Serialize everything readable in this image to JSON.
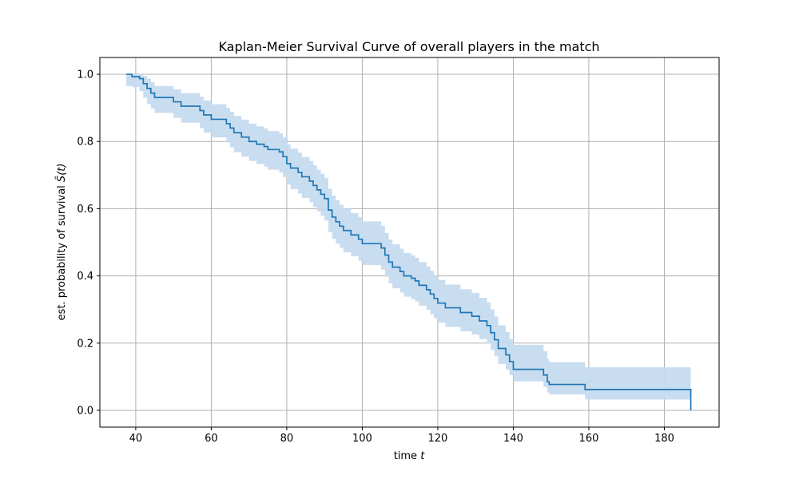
{
  "chart_data": {
    "type": "line",
    "title": "Kaplan-Meier Survival Curve of overall players in the match",
    "xlabel": "time",
    "xlabel_var": "t",
    "ylabel": "est. probability of survival",
    "ylabel_var": "Ŝ(t)",
    "xlim": [
      30.5,
      194.5
    ],
    "ylim": [
      -0.05,
      1.05
    ],
    "xticks": [
      40,
      60,
      80,
      100,
      120,
      140,
      160,
      180
    ],
    "yticks": [
      0.0,
      0.2,
      0.4,
      0.6,
      0.8,
      1.0
    ],
    "xtick_labels": [
      "40",
      "60",
      "80",
      "100",
      "120",
      "140",
      "160",
      "180"
    ],
    "ytick_labels": [
      "0.0",
      "0.2",
      "0.4",
      "0.6",
      "0.8",
      "1.0"
    ],
    "grid": true,
    "colors": {
      "line": "#1f77b4",
      "band": "#c6dbef",
      "grid": "#b0b0b0"
    },
    "series": [
      {
        "step": "post",
        "points": [
          [
            37.5,
            1.0
          ],
          [
            39,
            0.993
          ],
          [
            41,
            0.987
          ],
          [
            42,
            0.972
          ],
          [
            43,
            0.958
          ],
          [
            44,
            0.944
          ],
          [
            45,
            0.931
          ],
          [
            50,
            0.918
          ],
          [
            52,
            0.905
          ],
          [
            57,
            0.892
          ],
          [
            58,
            0.879
          ],
          [
            60,
            0.866
          ],
          [
            64,
            0.853
          ],
          [
            65,
            0.84
          ],
          [
            66,
            0.826
          ],
          [
            68,
            0.813
          ],
          [
            70,
            0.8
          ],
          [
            72,
            0.792
          ],
          [
            74,
            0.785
          ],
          [
            75,
            0.776
          ],
          [
            78,
            0.769
          ],
          [
            79,
            0.755
          ],
          [
            80,
            0.734
          ],
          [
            81,
            0.721
          ],
          [
            83,
            0.708
          ],
          [
            84,
            0.695
          ],
          [
            86,
            0.682
          ],
          [
            87,
            0.669
          ],
          [
            88,
            0.656
          ],
          [
            89,
            0.643
          ],
          [
            90,
            0.63
          ],
          [
            91,
            0.596
          ],
          [
            92,
            0.575
          ],
          [
            93,
            0.561
          ],
          [
            94,
            0.548
          ],
          [
            95,
            0.535
          ],
          [
            97,
            0.522
          ],
          [
            99,
            0.509
          ],
          [
            100,
            0.496
          ],
          [
            105,
            0.483
          ],
          [
            106,
            0.462
          ],
          [
            107,
            0.441
          ],
          [
            108,
            0.426
          ],
          [
            110,
            0.413
          ],
          [
            111,
            0.4
          ],
          [
            113,
            0.393
          ],
          [
            114,
            0.385
          ],
          [
            115,
            0.372
          ],
          [
            117,
            0.359
          ],
          [
            118,
            0.346
          ],
          [
            119,
            0.333
          ],
          [
            120,
            0.319
          ],
          [
            122,
            0.305
          ],
          [
            126,
            0.291
          ],
          [
            129,
            0.28
          ],
          [
            131,
            0.266
          ],
          [
            133,
            0.252
          ],
          [
            134,
            0.231
          ],
          [
            135,
            0.21
          ],
          [
            136,
            0.184
          ],
          [
            138,
            0.165
          ],
          [
            139,
            0.145
          ],
          [
            140,
            0.122
          ],
          [
            148,
            0.105
          ],
          [
            149,
            0.085
          ],
          [
            149.5,
            0.077
          ],
          [
            159,
            0.062
          ],
          [
            187,
            0.062
          ],
          [
            187,
            0.0
          ]
        ]
      }
    ],
    "confidence_band": {
      "step": "post",
      "points": [
        [
          37.5,
          0.965,
          1.0
        ],
        [
          39,
          0.962,
          1.0
        ],
        [
          41,
          0.95,
          1.0
        ],
        [
          42,
          0.93,
          0.995
        ],
        [
          43,
          0.912,
          0.987
        ],
        [
          44,
          0.898,
          0.977
        ],
        [
          45,
          0.885,
          0.965
        ],
        [
          50,
          0.87,
          0.955
        ],
        [
          52,
          0.856,
          0.944
        ],
        [
          57,
          0.84,
          0.933
        ],
        [
          58,
          0.826,
          0.922
        ],
        [
          60,
          0.812,
          0.911
        ],
        [
          64,
          0.797,
          0.9
        ],
        [
          65,
          0.783,
          0.888
        ],
        [
          66,
          0.768,
          0.876
        ],
        [
          68,
          0.755,
          0.865
        ],
        [
          70,
          0.742,
          0.853
        ],
        [
          72,
          0.733,
          0.845
        ],
        [
          74,
          0.725,
          0.839
        ],
        [
          75,
          0.716,
          0.831
        ],
        [
          78,
          0.708,
          0.824
        ],
        [
          79,
          0.694,
          0.812
        ],
        [
          80,
          0.672,
          0.792
        ],
        [
          81,
          0.658,
          0.779
        ],
        [
          83,
          0.645,
          0.767
        ],
        [
          84,
          0.632,
          0.754
        ],
        [
          86,
          0.619,
          0.742
        ],
        [
          87,
          0.605,
          0.729
        ],
        [
          88,
          0.592,
          0.716
        ],
        [
          89,
          0.579,
          0.704
        ],
        [
          90,
          0.565,
          0.691
        ],
        [
          91,
          0.531,
          0.659
        ],
        [
          92,
          0.51,
          0.639
        ],
        [
          93,
          0.496,
          0.625
        ],
        [
          94,
          0.483,
          0.612
        ],
        [
          95,
          0.47,
          0.6
        ],
        [
          97,
          0.458,
          0.587
        ],
        [
          99,
          0.445,
          0.575
        ],
        [
          100,
          0.432,
          0.562
        ],
        [
          105,
          0.419,
          0.549
        ],
        [
          106,
          0.398,
          0.528
        ],
        [
          107,
          0.378,
          0.508
        ],
        [
          108,
          0.363,
          0.494
        ],
        [
          110,
          0.351,
          0.481
        ],
        [
          111,
          0.338,
          0.468
        ],
        [
          113,
          0.331,
          0.461
        ],
        [
          114,
          0.324,
          0.454
        ],
        [
          115,
          0.311,
          0.441
        ],
        [
          117,
          0.299,
          0.428
        ],
        [
          118,
          0.286,
          0.415
        ],
        [
          119,
          0.274,
          0.402
        ],
        [
          120,
          0.261,
          0.388
        ],
        [
          122,
          0.248,
          0.374
        ],
        [
          126,
          0.235,
          0.36
        ],
        [
          129,
          0.225,
          0.349
        ],
        [
          131,
          0.212,
          0.335
        ],
        [
          133,
          0.199,
          0.321
        ],
        [
          134,
          0.18,
          0.3
        ],
        [
          135,
          0.161,
          0.279
        ],
        [
          136,
          0.138,
          0.253
        ],
        [
          138,
          0.121,
          0.233
        ],
        [
          139,
          0.104,
          0.212
        ],
        [
          140,
          0.086,
          0.195
        ],
        [
          148,
          0.07,
          0.176
        ],
        [
          149,
          0.053,
          0.153
        ],
        [
          149.5,
          0.047,
          0.143
        ],
        [
          159,
          0.032,
          0.128
        ],
        [
          187,
          0.032,
          0.128
        ]
      ]
    }
  }
}
